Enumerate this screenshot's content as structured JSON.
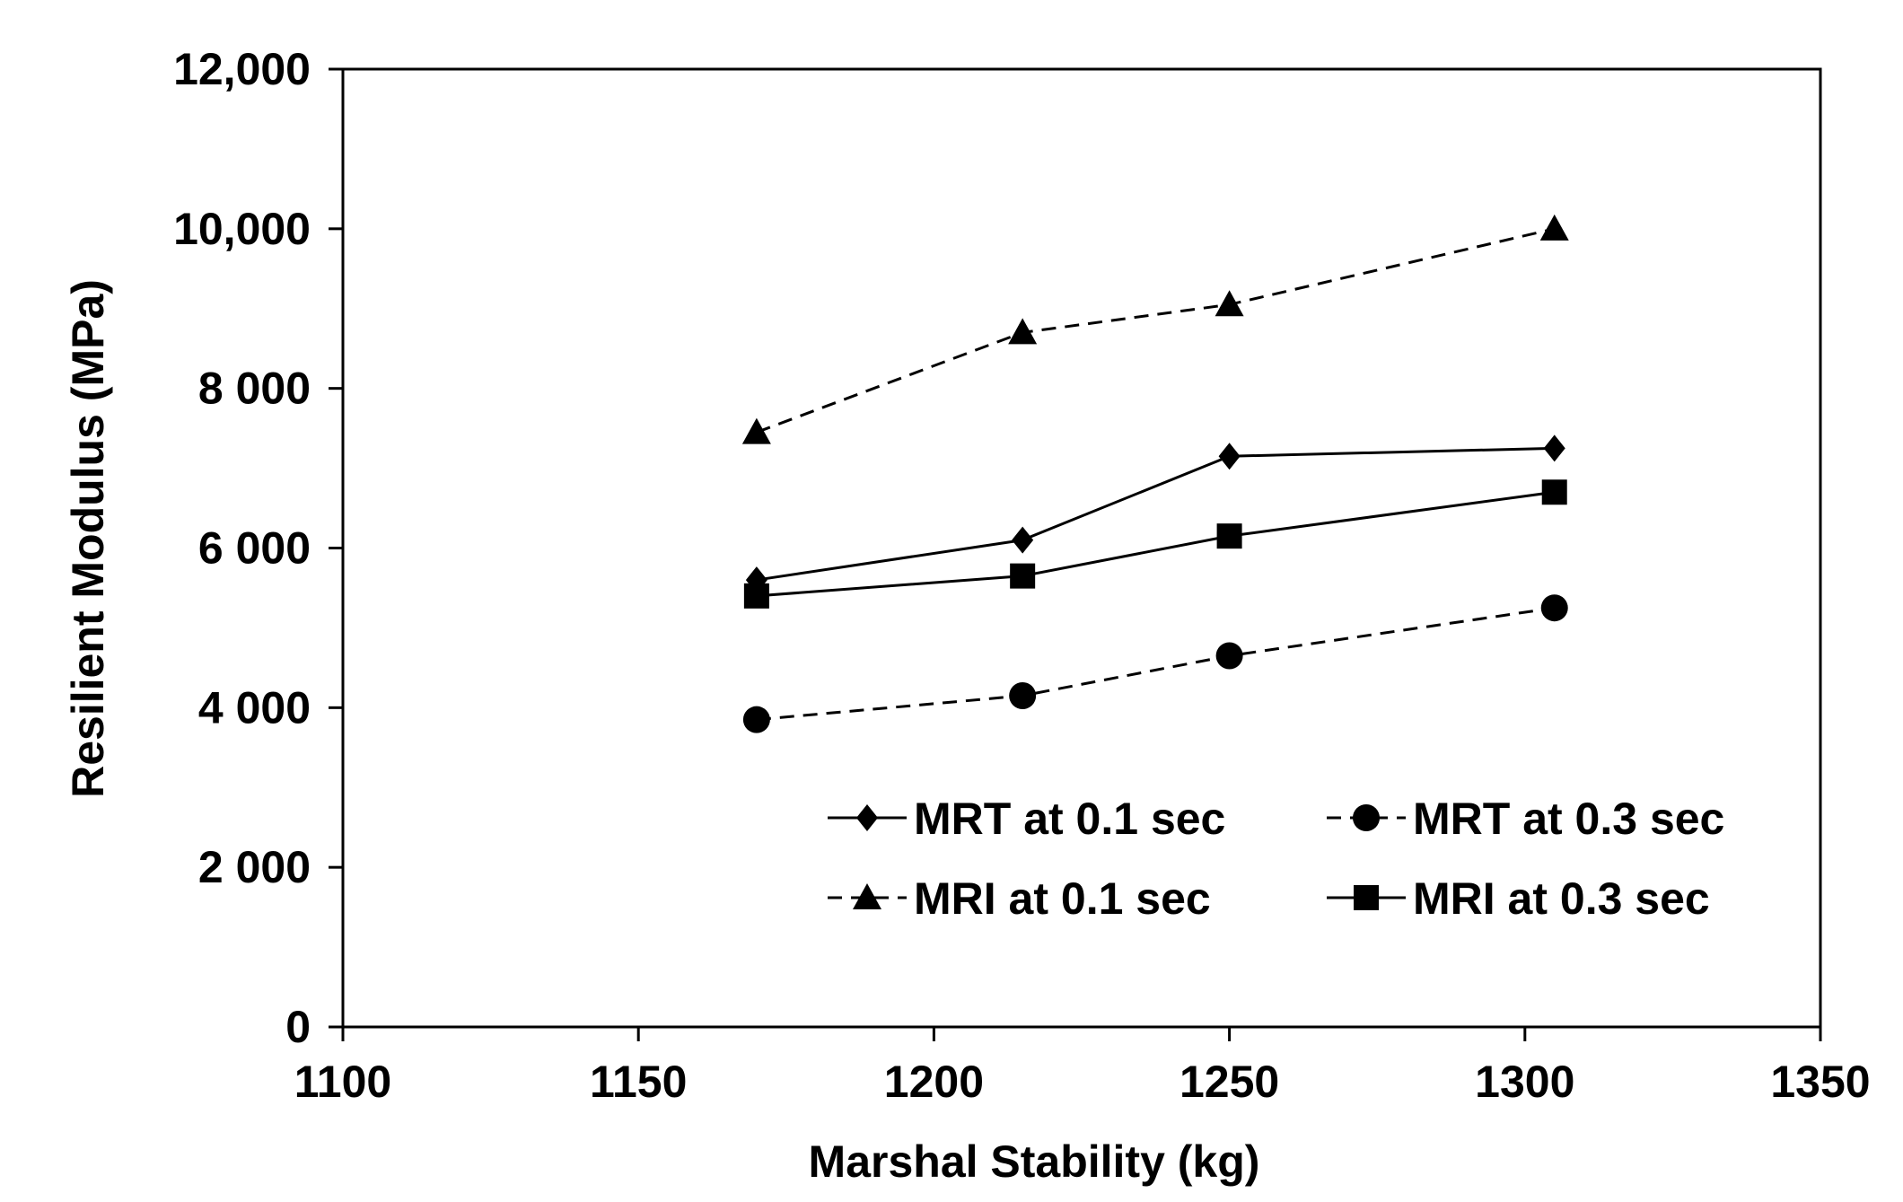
{
  "chart_data": {
    "type": "line",
    "xlabel": "Marshal Stability (kg)",
    "ylabel": "Resilient Modulus (MPa)",
    "xlim": [
      1100,
      1350
    ],
    "ylim": [
      0,
      12000
    ],
    "x_ticks": [
      1100,
      1150,
      1200,
      1250,
      1300,
      1350
    ],
    "x_tick_labels": [
      "1100",
      "1150",
      "1200",
      "1250",
      "1300",
      "1350"
    ],
    "y_ticks": [
      0,
      2000,
      4000,
      6000,
      8000,
      10000,
      12000
    ],
    "y_tick_labels": [
      "0",
      "2 000",
      "4 000",
      "6 000",
      "8 000",
      "10,000",
      "12,000"
    ],
    "grid": false,
    "legend_position": "bottom-right inside plot",
    "x": [
      1170,
      1215,
      1250,
      1305
    ],
    "series": [
      {
        "name": "MRT at 0.1 sec",
        "values": [
          5600,
          6100,
          7150,
          7250
        ],
        "marker": "diamond",
        "line": "solid"
      },
      {
        "name": "MRT at 0.3 sec",
        "values": [
          3850,
          4150,
          4650,
          5250
        ],
        "marker": "circle",
        "line": "dashed"
      },
      {
        "name": "MRI at 0.1 sec",
        "values": [
          7450,
          8700,
          9050,
          10000
        ],
        "marker": "triangle",
        "line": "dashed"
      },
      {
        "name": "MRI at 0.3 sec",
        "values": [
          5400,
          5650,
          6150,
          6700
        ],
        "marker": "square",
        "line": "solid"
      }
    ],
    "colors": {
      "line": "#000000",
      "background": "#ffffff"
    }
  }
}
